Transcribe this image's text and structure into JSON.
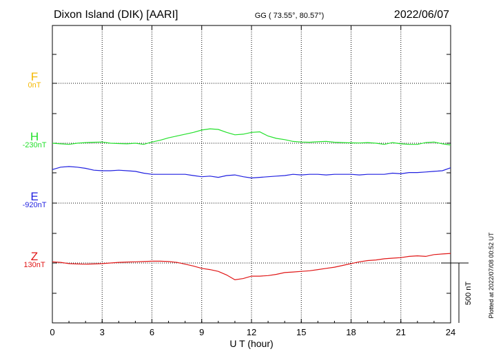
{
  "header": {
    "station": "Dixon Island (DIK)  [AARI]",
    "coords": "GG ( 73.55°,  80.57°)",
    "date": "2022/06/07"
  },
  "side_note": "Plotted at 2022/07/08 00:52 UT",
  "scale_label": "500 nT",
  "chart_data": {
    "type": "line",
    "xlabel": "U T (hour)",
    "xlim": [
      0,
      24
    ],
    "xticks": [
      0,
      3,
      6,
      9,
      12,
      15,
      18,
      21,
      24
    ],
    "series": [
      {
        "name": "F",
        "baseline_label": "0nT",
        "color": "#f5b800",
        "x": [],
        "y": []
      },
      {
        "name": "H",
        "baseline_label": "-230nT",
        "color": "#22e02a",
        "x": [
          0,
          0.5,
          1,
          1.5,
          2,
          2.5,
          3,
          3.5,
          4,
          4.5,
          5,
          5.5,
          6,
          6.5,
          7,
          7.5,
          8,
          8.5,
          9,
          9.5,
          10,
          10.5,
          11,
          11.5,
          12,
          12.5,
          13,
          13.5,
          14,
          14.5,
          15,
          15.5,
          16,
          16.5,
          17,
          17.5,
          18,
          18.5,
          19,
          19.5,
          20,
          20.5,
          21,
          21.5,
          22,
          22.5,
          23,
          23.5,
          24
        ],
        "y": [
          0,
          -5,
          -10,
          0,
          5,
          8,
          10,
          0,
          -3,
          -5,
          0,
          -10,
          10,
          25,
          45,
          60,
          75,
          90,
          110,
          120,
          115,
          90,
          70,
          75,
          90,
          95,
          60,
          40,
          30,
          15,
          10,
          8,
          12,
          15,
          8,
          5,
          3,
          2,
          5,
          0,
          -10,
          5,
          -5,
          -10,
          -10,
          5,
          10,
          -5,
          -15
        ]
      },
      {
        "name": "E",
        "baseline_label": "-920nT",
        "color": "#1e1ee0",
        "x": [
          0,
          0.5,
          1,
          1.5,
          2,
          2.5,
          3,
          3.5,
          4,
          4.5,
          5,
          5.5,
          6,
          6.5,
          7,
          7.5,
          8,
          8.5,
          9,
          9.5,
          10,
          10.5,
          11,
          11.5,
          12,
          12.5,
          13,
          13.5,
          14,
          14.5,
          15,
          15.5,
          16,
          16.5,
          17,
          17.5,
          18,
          18.5,
          19,
          19.5,
          20,
          20.5,
          21,
          21.5,
          22,
          22.5,
          23,
          23.5,
          24
        ],
        "y": [
          280,
          300,
          305,
          300,
          290,
          275,
          270,
          270,
          275,
          270,
          265,
          250,
          240,
          240,
          240,
          240,
          240,
          230,
          220,
          225,
          215,
          230,
          235,
          220,
          210,
          215,
          220,
          225,
          230,
          240,
          235,
          240,
          240,
          235,
          240,
          240,
          240,
          235,
          240,
          240,
          240,
          250,
          245,
          255,
          255,
          260,
          265,
          270,
          295
        ]
      },
      {
        "name": "Z",
        "baseline_label": "130nT",
        "color": "#e01515",
        "x": [
          0,
          0.5,
          1,
          1.5,
          2,
          2.5,
          3,
          3.5,
          4,
          4.5,
          5,
          5.5,
          6,
          6.5,
          7,
          7.5,
          8,
          8.5,
          9,
          9.5,
          10,
          10.5,
          11,
          11.5,
          12,
          12.5,
          13,
          13.5,
          14,
          14.5,
          15,
          15.5,
          16,
          16.5,
          17,
          17.5,
          18,
          18.5,
          19,
          19.5,
          20,
          20.5,
          21,
          21.5,
          22,
          22.5,
          23,
          23.5,
          24
        ],
        "y": [
          10,
          5,
          -5,
          -8,
          -10,
          -8,
          -5,
          0,
          5,
          8,
          10,
          12,
          15,
          15,
          12,
          5,
          -10,
          -25,
          -45,
          -55,
          -70,
          -100,
          -140,
          -130,
          -110,
          -110,
          -105,
          -95,
          -80,
          -75,
          -70,
          -65,
          -55,
          -45,
          -35,
          -20,
          -5,
          10,
          20,
          25,
          35,
          40,
          45,
          55,
          60,
          55,
          70,
          75,
          80
        ]
      }
    ],
    "scale_bar_nT": 500
  }
}
